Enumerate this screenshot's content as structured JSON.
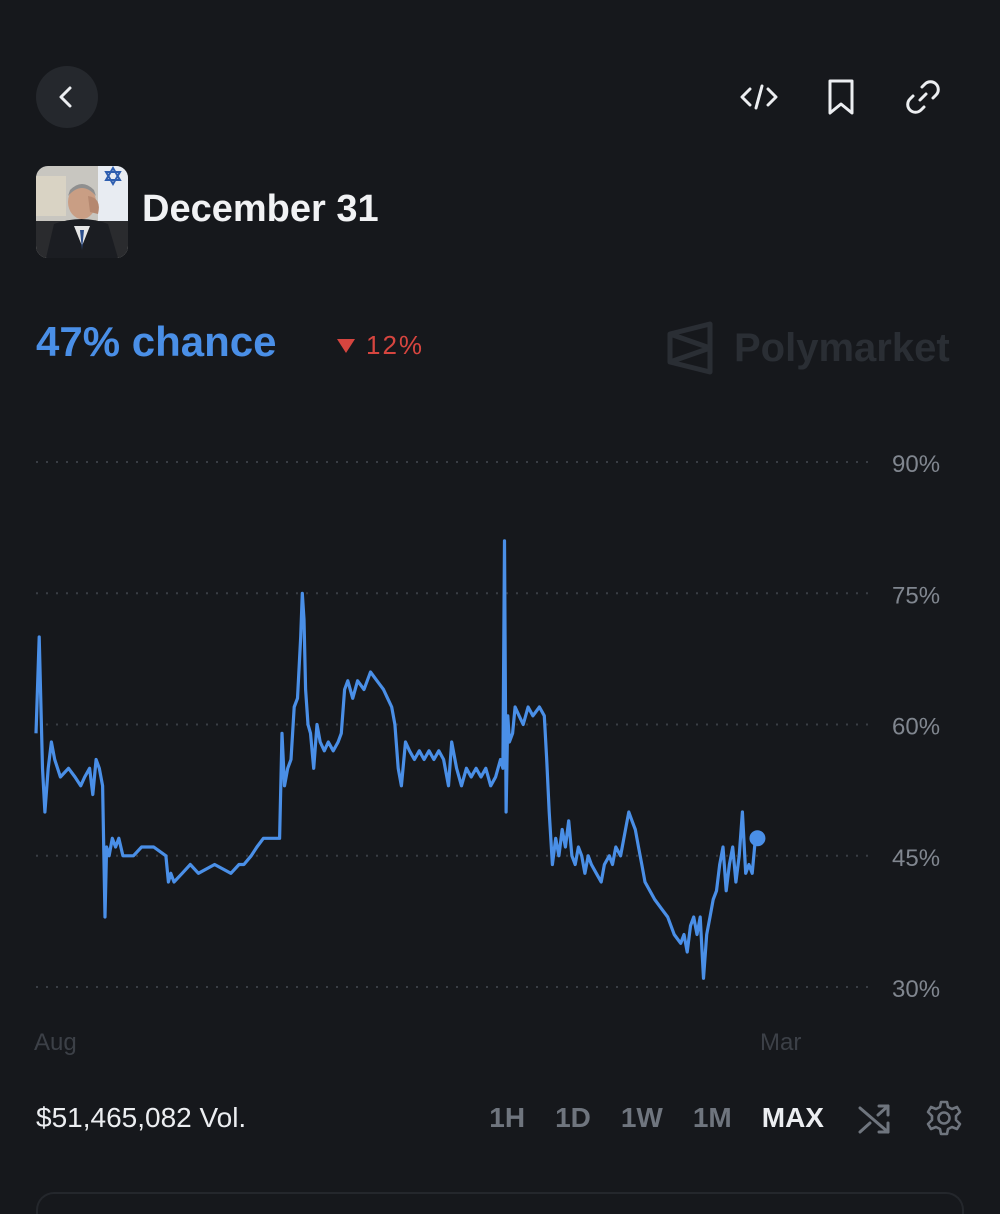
{
  "header": {
    "back": "back-icon",
    "actions": [
      "embed-code-icon",
      "bookmark-icon",
      "link-icon"
    ]
  },
  "market": {
    "title": "December 31",
    "thumbnail": "person-photo"
  },
  "price": {
    "chance_text": "47% chance",
    "change_text": "12%",
    "change_direction": "down",
    "change_color": "#d6453f",
    "accent": "#4a8fe7"
  },
  "watermark": {
    "text": "Polymarket"
  },
  "chart_data": {
    "type": "line",
    "series_color": "#4a8fe7",
    "y_ticks": [
      "90%",
      "75%",
      "60%",
      "45%",
      "30%"
    ],
    "y_tick_values": [
      90,
      75,
      60,
      45,
      30
    ],
    "ylim": [
      24,
      97
    ],
    "x_ticks": [
      "Aug",
      "Mar"
    ],
    "x_tick_values": [
      0.0,
      0.92
    ],
    "grid": "dotted-horizontal",
    "points": [
      [
        0.0,
        59
      ],
      [
        0.004,
        70
      ],
      [
        0.008,
        55
      ],
      [
        0.011,
        50
      ],
      [
        0.015,
        55
      ],
      [
        0.019,
        58
      ],
      [
        0.023,
        56
      ],
      [
        0.03,
        54
      ],
      [
        0.04,
        55
      ],
      [
        0.048,
        54
      ],
      [
        0.055,
        53
      ],
      [
        0.06,
        54
      ],
      [
        0.066,
        55
      ],
      [
        0.07,
        52
      ],
      [
        0.074,
        56
      ],
      [
        0.078,
        55
      ],
      [
        0.082,
        53
      ],
      [
        0.085,
        38
      ],
      [
        0.087,
        46
      ],
      [
        0.09,
        45
      ],
      [
        0.094,
        47
      ],
      [
        0.098,
        46
      ],
      [
        0.102,
        47
      ],
      [
        0.107,
        45
      ],
      [
        0.12,
        45
      ],
      [
        0.13,
        46
      ],
      [
        0.145,
        46
      ],
      [
        0.16,
        45
      ],
      [
        0.163,
        42
      ],
      [
        0.166,
        43
      ],
      [
        0.17,
        42
      ],
      [
        0.18,
        43
      ],
      [
        0.19,
        44
      ],
      [
        0.2,
        43
      ],
      [
        0.22,
        44
      ],
      [
        0.24,
        43
      ],
      [
        0.25,
        44
      ],
      [
        0.256,
        44
      ],
      [
        0.265,
        45
      ],
      [
        0.272,
        46
      ],
      [
        0.28,
        47
      ],
      [
        0.288,
        47
      ],
      [
        0.3,
        47
      ],
      [
        0.303,
        59
      ],
      [
        0.306,
        53
      ],
      [
        0.31,
        55
      ],
      [
        0.314,
        56
      ],
      [
        0.318,
        62
      ],
      [
        0.322,
        63
      ],
      [
        0.326,
        70
      ],
      [
        0.328,
        75
      ],
      [
        0.33,
        72
      ],
      [
        0.332,
        64
      ],
      [
        0.335,
        60
      ],
      [
        0.338,
        59
      ],
      [
        0.342,
        55
      ],
      [
        0.346,
        60
      ],
      [
        0.35,
        58
      ],
      [
        0.355,
        57
      ],
      [
        0.36,
        58
      ],
      [
        0.366,
        57
      ],
      [
        0.372,
        58
      ],
      [
        0.376,
        59
      ],
      [
        0.38,
        64
      ],
      [
        0.384,
        65
      ],
      [
        0.39,
        63
      ],
      [
        0.396,
        65
      ],
      [
        0.404,
        64
      ],
      [
        0.412,
        66
      ],
      [
        0.42,
        65
      ],
      [
        0.428,
        64
      ],
      [
        0.433,
        63
      ],
      [
        0.438,
        62
      ],
      [
        0.442,
        60
      ],
      [
        0.446,
        55
      ],
      [
        0.45,
        53
      ],
      [
        0.455,
        58
      ],
      [
        0.46,
        57
      ],
      [
        0.466,
        56
      ],
      [
        0.472,
        57
      ],
      [
        0.478,
        56
      ],
      [
        0.484,
        57
      ],
      [
        0.49,
        56
      ],
      [
        0.496,
        57
      ],
      [
        0.502,
        56
      ],
      [
        0.508,
        53
      ],
      [
        0.512,
        58
      ],
      [
        0.518,
        55
      ],
      [
        0.524,
        53
      ],
      [
        0.53,
        55
      ],
      [
        0.536,
        54
      ],
      [
        0.542,
        55
      ],
      [
        0.548,
        54
      ],
      [
        0.554,
        55
      ],
      [
        0.56,
        53
      ],
      [
        0.566,
        54
      ],
      [
        0.572,
        56
      ],
      [
        0.575,
        55
      ],
      [
        0.577,
        81
      ],
      [
        0.579,
        50
      ],
      [
        0.581,
        61
      ],
      [
        0.583,
        58
      ],
      [
        0.587,
        59
      ],
      [
        0.59,
        62
      ],
      [
        0.595,
        61
      ],
      [
        0.6,
        60
      ],
      [
        0.606,
        62
      ],
      [
        0.612,
        61
      ],
      [
        0.62,
        62
      ],
      [
        0.626,
        61
      ],
      [
        0.629,
        56
      ],
      [
        0.632,
        50
      ],
      [
        0.636,
        44
      ],
      [
        0.64,
        47
      ],
      [
        0.644,
        45
      ],
      [
        0.648,
        48
      ],
      [
        0.652,
        46
      ],
      [
        0.656,
        49
      ],
      [
        0.66,
        45
      ],
      [
        0.664,
        44
      ],
      [
        0.668,
        46
      ],
      [
        0.672,
        45
      ],
      [
        0.676,
        43
      ],
      [
        0.68,
        45
      ],
      [
        0.684,
        44
      ],
      [
        0.69,
        43
      ],
      [
        0.696,
        42
      ],
      [
        0.7,
        44
      ],
      [
        0.706,
        45
      ],
      [
        0.71,
        44
      ],
      [
        0.714,
        46
      ],
      [
        0.72,
        45
      ],
      [
        0.726,
        48
      ],
      [
        0.73,
        50
      ],
      [
        0.734,
        49
      ],
      [
        0.738,
        48
      ],
      [
        0.742,
        46
      ],
      [
        0.746,
        44
      ],
      [
        0.75,
        42
      ],
      [
        0.756,
        41
      ],
      [
        0.762,
        40
      ],
      [
        0.77,
        39
      ],
      [
        0.778,
        38
      ],
      [
        0.786,
        36
      ],
      [
        0.794,
        35
      ],
      [
        0.798,
        36
      ],
      [
        0.802,
        34
      ],
      [
        0.806,
        37
      ],
      [
        0.81,
        38
      ],
      [
        0.814,
        36
      ],
      [
        0.818,
        38
      ],
      [
        0.822,
        31
      ],
      [
        0.826,
        36
      ],
      [
        0.83,
        38
      ],
      [
        0.834,
        40
      ],
      [
        0.838,
        41
      ],
      [
        0.842,
        44
      ],
      [
        0.846,
        46
      ],
      [
        0.85,
        41
      ],
      [
        0.854,
        44
      ],
      [
        0.858,
        46
      ],
      [
        0.862,
        42
      ],
      [
        0.866,
        45
      ],
      [
        0.87,
        50
      ],
      [
        0.874,
        43
      ],
      [
        0.878,
        44
      ],
      [
        0.882,
        43
      ],
      [
        0.886,
        47
      ]
    ]
  },
  "footer": {
    "volume_text": "$51,465,082 Vol.",
    "ranges": [
      "1H",
      "1D",
      "1W",
      "1M",
      "MAX"
    ],
    "active_range": "MAX",
    "icons": [
      "shuffle-icon",
      "settings-gear-icon"
    ]
  }
}
